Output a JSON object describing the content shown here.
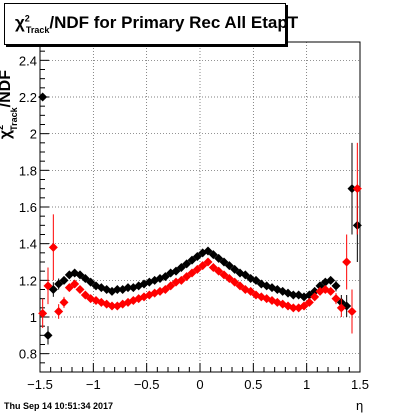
{
  "chart_data": {
    "type": "scatter",
    "title": {
      "chi": "χ",
      "sup": "2",
      "sub": "Track",
      "rest": "/NDF for Primary Rec All EtapT"
    },
    "xlabel": "η",
    "ylabel": {
      "chi": "χ",
      "sup": "2",
      "sub": "Track",
      "rest": "/NDF"
    },
    "timestamp": "Thu Sep 14 10:51:34 2017",
    "xlim": [
      -1.5,
      1.5
    ],
    "ylim": [
      0.7,
      2.5
    ],
    "x_ticks": [
      "−1.5",
      "−1",
      "−0.5",
      "0",
      "0.5",
      "1",
      "1.5"
    ],
    "y_ticks": [
      "0.8",
      "1",
      "1.2",
      "1.4",
      "1.6",
      "1.8",
      "2",
      "2.2",
      "2.4"
    ],
    "grid": true,
    "colors": {
      "black_series": "#000000",
      "red_series": "#ff0000"
    },
    "series": [
      {
        "color": "black",
        "x": [
          -1.475,
          -1.425,
          -1.375,
          -1.325,
          -1.275,
          -1.225,
          -1.175,
          -1.125,
          -1.075,
          -1.025,
          -0.975,
          -0.925,
          -0.875,
          -0.825,
          -0.775,
          -0.725,
          -0.675,
          -0.625,
          -0.575,
          -0.525,
          -0.475,
          -0.425,
          -0.375,
          -0.325,
          -0.275,
          -0.225,
          -0.175,
          -0.125,
          -0.075,
          -0.025,
          0.025,
          0.075,
          0.125,
          0.175,
          0.225,
          0.275,
          0.325,
          0.375,
          0.425,
          0.475,
          0.525,
          0.575,
          0.625,
          0.675,
          0.725,
          0.775,
          0.825,
          0.875,
          0.925,
          0.975,
          1.025,
          1.075,
          1.125,
          1.175,
          1.225,
          1.275,
          1.325,
          1.375,
          1.425,
          1.475
        ],
        "y": [
          2.2,
          0.9,
          1.15,
          1.18,
          1.2,
          1.23,
          1.24,
          1.23,
          1.21,
          1.19,
          1.17,
          1.16,
          1.15,
          1.14,
          1.15,
          1.15,
          1.16,
          1.16,
          1.17,
          1.18,
          1.19,
          1.2,
          1.21,
          1.22,
          1.24,
          1.25,
          1.27,
          1.29,
          1.31,
          1.33,
          1.35,
          1.36,
          1.34,
          1.32,
          1.3,
          1.28,
          1.26,
          1.24,
          1.23,
          1.21,
          1.2,
          1.18,
          1.17,
          1.16,
          1.15,
          1.14,
          1.13,
          1.12,
          1.12,
          1.11,
          1.12,
          1.14,
          1.17,
          1.19,
          1.2,
          1.17,
          1.08,
          1.06,
          1.7,
          1.5
        ],
        "err": [
          0.0,
          0.05,
          0.04,
          0.03,
          0.02,
          0.02,
          0.02,
          0.01,
          0.01,
          0.01,
          0.01,
          0.01,
          0.01,
          0.01,
          0.01,
          0.01,
          0.01,
          0.01,
          0.01,
          0.01,
          0.01,
          0.01,
          0.01,
          0.01,
          0.01,
          0.01,
          0.01,
          0.01,
          0.01,
          0.01,
          0.01,
          0.01,
          0.01,
          0.01,
          0.01,
          0.01,
          0.01,
          0.01,
          0.01,
          0.01,
          0.01,
          0.01,
          0.01,
          0.01,
          0.01,
          0.01,
          0.01,
          0.01,
          0.01,
          0.01,
          0.01,
          0.01,
          0.02,
          0.02,
          0.02,
          0.03,
          0.04,
          0.06,
          0.25,
          0.2
        ]
      },
      {
        "color": "red",
        "x": [
          -1.475,
          -1.425,
          -1.375,
          -1.325,
          -1.275,
          -1.225,
          -1.175,
          -1.125,
          -1.075,
          -1.025,
          -0.975,
          -0.925,
          -0.875,
          -0.825,
          -0.775,
          -0.725,
          -0.675,
          -0.625,
          -0.575,
          -0.525,
          -0.475,
          -0.425,
          -0.375,
          -0.325,
          -0.275,
          -0.225,
          -0.175,
          -0.125,
          -0.075,
          -0.025,
          0.025,
          0.075,
          0.125,
          0.175,
          0.225,
          0.275,
          0.325,
          0.375,
          0.425,
          0.475,
          0.525,
          0.575,
          0.625,
          0.675,
          0.725,
          0.775,
          0.825,
          0.875,
          0.925,
          0.975,
          1.025,
          1.075,
          1.125,
          1.175,
          1.225,
          1.275,
          1.325,
          1.375,
          1.425,
          1.475
        ],
        "y": [
          1.02,
          1.17,
          1.38,
          1.03,
          1.08,
          1.16,
          1.18,
          1.15,
          1.12,
          1.1,
          1.09,
          1.08,
          1.07,
          1.06,
          1.06,
          1.07,
          1.08,
          1.09,
          1.1,
          1.11,
          1.12,
          1.13,
          1.14,
          1.15,
          1.17,
          1.19,
          1.2,
          1.22,
          1.24,
          1.26,
          1.28,
          1.3,
          1.27,
          1.25,
          1.23,
          1.21,
          1.19,
          1.17,
          1.15,
          1.14,
          1.12,
          1.11,
          1.1,
          1.09,
          1.08,
          1.07,
          1.06,
          1.05,
          1.05,
          1.06,
          1.08,
          1.11,
          1.14,
          1.15,
          1.14,
          1.1,
          1.05,
          1.3,
          1.03,
          1.7
        ],
        "err": [
          0.08,
          0.1,
          0.18,
          0.04,
          0.03,
          0.02,
          0.02,
          0.02,
          0.01,
          0.01,
          0.01,
          0.01,
          0.01,
          0.01,
          0.01,
          0.01,
          0.01,
          0.01,
          0.01,
          0.01,
          0.01,
          0.01,
          0.01,
          0.01,
          0.01,
          0.01,
          0.01,
          0.01,
          0.01,
          0.01,
          0.01,
          0.01,
          0.01,
          0.01,
          0.01,
          0.01,
          0.01,
          0.01,
          0.01,
          0.01,
          0.01,
          0.01,
          0.01,
          0.01,
          0.01,
          0.01,
          0.01,
          0.01,
          0.01,
          0.01,
          0.01,
          0.01,
          0.02,
          0.02,
          0.02,
          0.03,
          0.05,
          0.15,
          0.12,
          0.25
        ]
      }
    ]
  }
}
